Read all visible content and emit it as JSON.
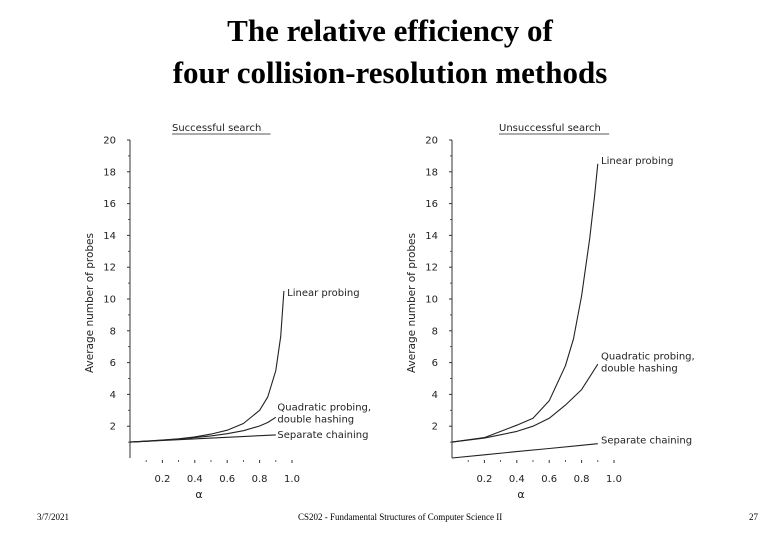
{
  "slide": {
    "title_line1": "The relative efficiency of",
    "title_line2": "four collision-resolution methods",
    "footer_date": "3/7/2021",
    "footer_course": "CS202 - Fundamental Structures of Computer Science II",
    "footer_page": "27"
  },
  "chart_data": [
    {
      "type": "line",
      "title": "Successful search",
      "xlabel": "α",
      "ylabel": "Average number of probes",
      "xticks": [
        "0.2",
        "0.4",
        "0.6",
        "0.8",
        "1.0"
      ],
      "yticks": [
        "2",
        "4",
        "6",
        "8",
        "10",
        "12",
        "14",
        "16",
        "18",
        "20"
      ],
      "xlim": [
        0,
        1.0
      ],
      "ylim": [
        0,
        20
      ],
      "series": [
        {
          "name": "Linear probing",
          "x": [
            0,
            0.1,
            0.2,
            0.3,
            0.4,
            0.5,
            0.6,
            0.7,
            0.8,
            0.85,
            0.9,
            0.93,
            0.95
          ],
          "y": [
            1.0,
            1.06,
            1.13,
            1.21,
            1.33,
            1.5,
            1.75,
            2.17,
            3.0,
            3.83,
            5.5,
            7.64,
            10.5
          ],
          "label_x": 0.97,
          "label_y": 10.2
        },
        {
          "name": "Quadratic probing, double hashing",
          "x": [
            0,
            0.1,
            0.2,
            0.3,
            0.4,
            0.5,
            0.6,
            0.7,
            0.8,
            0.85,
            0.9
          ],
          "y": [
            1.0,
            1.05,
            1.12,
            1.19,
            1.28,
            1.39,
            1.53,
            1.72,
            2.01,
            2.23,
            2.56
          ],
          "label_x": 0.91,
          "label_y": 3.0
        },
        {
          "name": "Separate chaining",
          "x": [
            0,
            0.9
          ],
          "y": [
            1.0,
            1.45
          ],
          "label_x": 0.91,
          "label_y": 1.25
        }
      ]
    },
    {
      "type": "line",
      "title": "Unsuccessful search",
      "xlabel": "α",
      "ylabel": "Average number of probes",
      "xticks": [
        "0.2",
        "0.4",
        "0.6",
        "0.8",
        "1.0"
      ],
      "yticks": [
        "2",
        "4",
        "6",
        "8",
        "10",
        "12",
        "14",
        "16",
        "18",
        "20"
      ],
      "xlim": [
        0,
        1.0
      ],
      "ylim": [
        0,
        20
      ],
      "series": [
        {
          "name": "Linear probing",
          "x": [
            0,
            0.2,
            0.4,
            0.5,
            0.6,
            0.7,
            0.75,
            0.8,
            0.85,
            0.88,
            0.9
          ],
          "y": [
            1.0,
            1.28,
            2.06,
            2.5,
            3.6,
            5.8,
            7.5,
            10.2,
            13.8,
            16.5,
            18.5
          ],
          "label_x": 0.92,
          "label_y": 18.5
        },
        {
          "name": "Quadratic probing, double hashing",
          "x": [
            0,
            0.2,
            0.4,
            0.5,
            0.6,
            0.7,
            0.8,
            0.9
          ],
          "y": [
            1.0,
            1.25,
            1.67,
            2.0,
            2.5,
            3.33,
            4.3,
            5.9
          ],
          "label_x": 0.92,
          "label_y": 6.2
        },
        {
          "name": "Separate chaining",
          "x": [
            0,
            0.2,
            0.4,
            0.6,
            0.8,
            0.9
          ],
          "y": [
            0.0,
            0.2,
            0.4,
            0.6,
            0.8,
            0.9
          ],
          "label_x": 0.92,
          "label_y": 0.9
        }
      ]
    }
  ]
}
